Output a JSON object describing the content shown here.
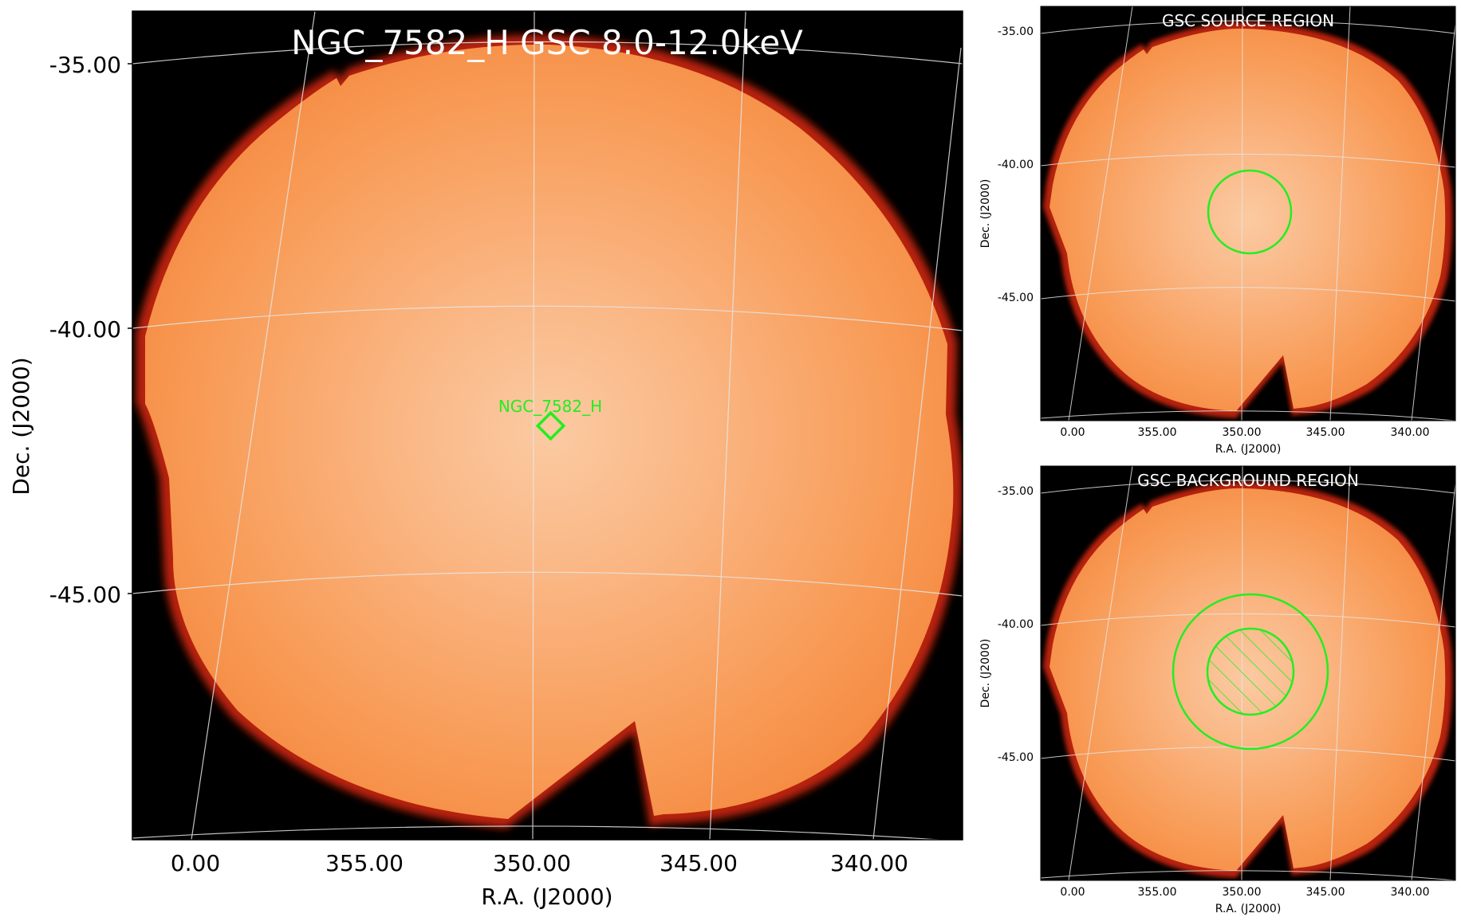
{
  "main_panel": {
    "title": "NGC_7582_H GSC 8.0-12.0keV",
    "source_label": "NGC_7582_H",
    "xlabel": "R.A. (J2000)",
    "ylabel": "Dec. (J2000)",
    "x_ticks": [
      "0.00",
      "355.00",
      "350.00",
      "345.00",
      "340.00"
    ],
    "y_ticks": [
      "-35.00",
      "-40.00",
      "-45.00"
    ]
  },
  "source_panel": {
    "title": "GSC SOURCE REGION",
    "xlabel": "R.A. (J2000)",
    "ylabel": "Dec. (J2000)",
    "x_ticks": [
      "0.00",
      "355.00",
      "350.00",
      "345.00",
      "340.00"
    ],
    "y_ticks": [
      "-35.00",
      "-40.00",
      "-45.00"
    ]
  },
  "background_panel": {
    "title": "GSC BACKGROUND REGION",
    "xlabel": "R.A. (J2000)",
    "ylabel": "Dec. (J2000)",
    "x_ticks": [
      "0.00",
      "355.00",
      "350.00",
      "345.00",
      "340.00"
    ],
    "y_ticks": [
      "-35.00",
      "-40.00",
      "-45.00"
    ]
  },
  "colors": {
    "background": "#000000",
    "sky_fill": "#f89a55",
    "sky_center": "#fbcaa2",
    "edge": "#b8200a",
    "grid": "#dddddd",
    "region": "#22ee22"
  }
}
